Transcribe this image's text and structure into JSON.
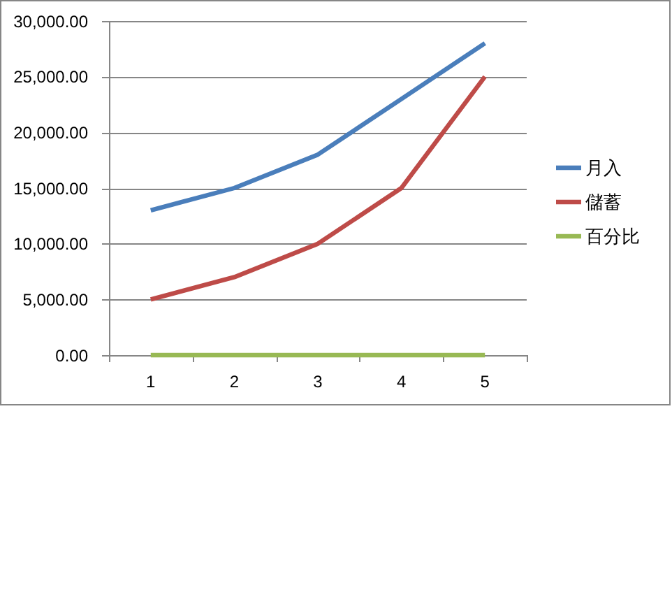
{
  "chart_data": {
    "type": "line",
    "categories": [
      "1",
      "2",
      "3",
      "4",
      "5"
    ],
    "series": [
      {
        "name": "月入",
        "color": "#4a7ebb",
        "values": [
          13000,
          15000,
          18000,
          23000,
          28000
        ]
      },
      {
        "name": "儲蓄",
        "color": "#be4b48",
        "values": [
          5000,
          7000,
          10000,
          15000,
          25000
        ]
      },
      {
        "name": "百分比",
        "color": "#98b954",
        "values": [
          0,
          0,
          0,
          0,
          0
        ]
      }
    ],
    "ylim": [
      0,
      30000
    ],
    "yticks": [
      {
        "value": 0,
        "label": "0.00"
      },
      {
        "value": 5000,
        "label": "5,000.00"
      },
      {
        "value": 10000,
        "label": "10,000.00"
      },
      {
        "value": 15000,
        "label": "15,000.00"
      },
      {
        "value": 20000,
        "label": "20,000.00"
      },
      {
        "value": 25000,
        "label": "25,000.00"
      },
      {
        "value": 30000,
        "label": "30,000.00"
      }
    ],
    "grid": "y",
    "legend": "right"
  }
}
